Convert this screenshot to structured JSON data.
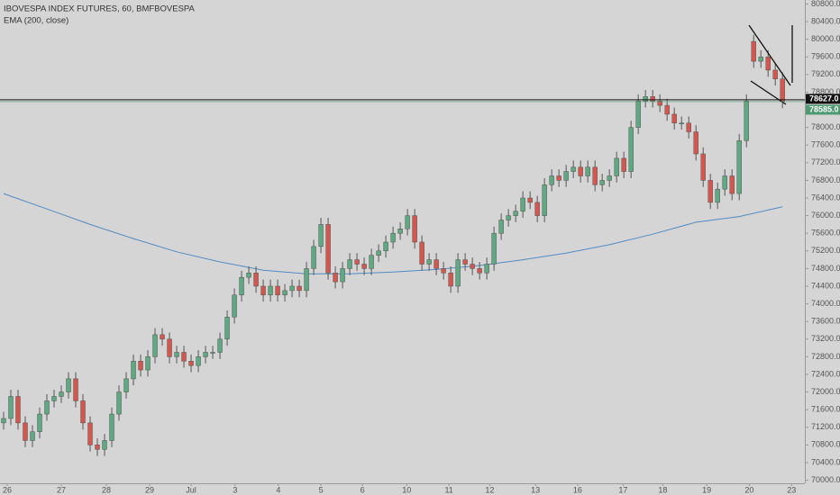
{
  "chart_data": {
    "type": "candlestick",
    "title": "IBOVESPA INDEX FUTURES, 60, BMFBOVESPA",
    "colors": {
      "up": "#5fa882",
      "down": "#d2574e"
    },
    "open": [
      71300,
      71400,
      71900,
      71300,
      70900,
      71100,
      71500,
      71800,
      71900,
      72000,
      72300,
      71800,
      71300,
      70800,
      70700,
      70900,
      71500,
      72000,
      72300,
      72700,
      72500,
      72800,
      73300,
      73200,
      72800,
      72900,
      72700,
      72600,
      72800,
      72900,
      72900,
      73200,
      73700,
      74200,
      74600,
      74700,
      74400,
      74200,
      74400,
      74200,
      74300,
      74400,
      74300,
      74800,
      75300,
      75800,
      74700,
      74500,
      74800,
      75000,
      74900,
      74800,
      75100,
      75200,
      75400,
      75600,
      75700,
      76000,
      75400,
      74900,
      75000,
      74800,
      74700,
      74400,
      75000,
      74900,
      74800,
      74700,
      74900,
      75600,
      75900,
      76000,
      76100,
      76400,
      76300,
      76000,
      76700,
      76900,
      76800,
      77000,
      77100,
      76900,
      77100,
      76700,
      76800,
      76900,
      77300,
      77000,
      78000,
      78600,
      78700,
      78600,
      78500,
      78300,
      78100,
      78100,
      77900,
      77400,
      76800,
      76300,
      76600,
      76900,
      76500,
      77700,
      79950,
      79500,
      79600,
      79300,
      79100
    ],
    "high": [
      71550,
      72050,
      72050,
      71450,
      71250,
      71650,
      71950,
      72050,
      72150,
      72450,
      72450,
      71950,
      71450,
      70950,
      71050,
      71650,
      72150,
      72450,
      72850,
      72850,
      72950,
      73450,
      73450,
      73350,
      73050,
      73050,
      72850,
      72950,
      73050,
      73050,
      73350,
      73850,
      74350,
      74750,
      74850,
      74850,
      74550,
      74550,
      74550,
      74450,
      74550,
      74550,
      74950,
      75450,
      75950,
      75950,
      74850,
      74950,
      75150,
      75150,
      75050,
      75250,
      75350,
      75550,
      75750,
      75850,
      76150,
      76150,
      75550,
      75150,
      75150,
      74950,
      74850,
      75150,
      75150,
      75050,
      74950,
      75050,
      75750,
      76050,
      76150,
      76250,
      76550,
      76550,
      76450,
      76850,
      77050,
      77050,
      77150,
      77250,
      77250,
      77250,
      77250,
      76950,
      77050,
      77450,
      77450,
      78150,
      78750,
      78850,
      78850,
      78750,
      78650,
      78450,
      78250,
      78250,
      78050,
      77550,
      76950,
      76750,
      77050,
      77050,
      77850,
      78750,
      80100,
      79750,
      79750,
      79450,
      79250
    ],
    "low": [
      71150,
      71250,
      71150,
      70750,
      70750,
      70950,
      71350,
      71650,
      71750,
      71850,
      71650,
      71150,
      70650,
      70550,
      70550,
      70750,
      71350,
      71850,
      72150,
      72350,
      72350,
      72650,
      73050,
      72650,
      72650,
      72550,
      72450,
      72450,
      72650,
      72750,
      72750,
      73050,
      73550,
      74050,
      74450,
      74250,
      74050,
      74050,
      74050,
      74050,
      74150,
      74150,
      74150,
      74650,
      75150,
      74550,
      74350,
      74350,
      74650,
      74750,
      74650,
      74650,
      74950,
      75050,
      75250,
      75450,
      75550,
      75250,
      74750,
      74750,
      74650,
      74550,
      74250,
      74250,
      74750,
      74650,
      74550,
      74550,
      74750,
      75450,
      75750,
      75850,
      75950,
      76150,
      75850,
      75850,
      76550,
      76650,
      76650,
      76850,
      76750,
      76750,
      76550,
      76550,
      76650,
      76750,
      76850,
      76850,
      77850,
      78450,
      78450,
      78350,
      78150,
      77950,
      77950,
      77750,
      77250,
      76650,
      76150,
      76150,
      76450,
      76350,
      76350,
      77550,
      79350,
      79350,
      79150,
      78950,
      78435
    ],
    "close": [
      71400,
      71900,
      71300,
      70900,
      71100,
      71500,
      71800,
      71900,
      72000,
      72300,
      71800,
      71300,
      70800,
      70700,
      70900,
      71500,
      72000,
      72300,
      72700,
      72500,
      72800,
      73300,
      73200,
      72800,
      72900,
      72700,
      72600,
      72800,
      72900,
      72900,
      73200,
      73700,
      74200,
      74600,
      74700,
      74400,
      74200,
      74400,
      74200,
      74300,
      74400,
      74300,
      74800,
      75300,
      75800,
      74700,
      74500,
      74800,
      75000,
      74900,
      74800,
      75100,
      75200,
      75400,
      75600,
      75700,
      76000,
      75400,
      74900,
      75000,
      74800,
      74700,
      74400,
      75000,
      74900,
      74800,
      74700,
      74900,
      75600,
      75900,
      76000,
      76100,
      76400,
      76300,
      76000,
      76700,
      76900,
      76800,
      77000,
      77100,
      76900,
      77100,
      76700,
      76800,
      76900,
      77300,
      77000,
      78000,
      78600,
      78700,
      78600,
      78500,
      78300,
      78100,
      78100,
      77900,
      77400,
      76800,
      76300,
      76600,
      76900,
      76500,
      77700,
      78600,
      79500,
      79600,
      79300,
      79100,
      78585
    ],
    "ema": {
      "name": "EMA (200, close)",
      "color": "#4f8cc4",
      "x": [
        0,
        6,
        12,
        18,
        24,
        30,
        36,
        42,
        48,
        54,
        60,
        66,
        72,
        78,
        84,
        90,
        96,
        102,
        108
      ],
      "values": [
        76500,
        76150,
        75800,
        75480,
        75180,
        74950,
        74760,
        74680,
        74680,
        74720,
        74780,
        74870,
        75000,
        75150,
        75340,
        75580,
        75850,
        75980,
        76200
      ]
    },
    "price_lines": [
      {
        "value": 78627,
        "label": "78627.0",
        "color": "#111111"
      },
      {
        "value": 78585,
        "label": "78585.0",
        "color": "#4f9a72"
      }
    ],
    "xlim": [
      -0.5,
      111.1
    ],
    "xticks": [
      {
        "value": 0.5,
        "label": "26"
      },
      {
        "value": 8,
        "label": "27"
      },
      {
        "value": 14.25,
        "label": "28"
      },
      {
        "value": 20.25,
        "label": "29"
      },
      {
        "value": 26,
        "label": "Jul"
      },
      {
        "value": 32.1,
        "label": "3"
      },
      {
        "value": 38.1,
        "label": "4"
      },
      {
        "value": 44,
        "label": "5"
      },
      {
        "value": 49.75,
        "label": "6"
      },
      {
        "value": 55.9,
        "label": "10"
      },
      {
        "value": 61.75,
        "label": "11"
      },
      {
        "value": 67.4,
        "label": "12"
      },
      {
        "value": 73.75,
        "label": "13"
      },
      {
        "value": 79.6,
        "label": "16"
      },
      {
        "value": 85.9,
        "label": "17"
      },
      {
        "value": 91.4,
        "label": "18"
      },
      {
        "value": 97.5,
        "label": "19"
      },
      {
        "value": 103.4,
        "label": "20"
      },
      {
        "value": 109.25,
        "label": "23"
      }
    ],
    "ylim": [
      69930,
      80890
    ],
    "yticks": [
      {
        "value": 70000,
        "label": "70000.0"
      },
      {
        "value": 70400,
        "label": "70400.0"
      },
      {
        "value": 70800,
        "label": "70800.0"
      },
      {
        "value": 71200,
        "label": "71200.0"
      },
      {
        "value": 71600,
        "label": "71600.0"
      },
      {
        "value": 72000,
        "label": "72000.0"
      },
      {
        "value": 72400,
        "label": "72400.0"
      },
      {
        "value": 72800,
        "label": "72800.0"
      },
      {
        "value": 73200,
        "label": "73200.0"
      },
      {
        "value": 73600,
        "label": "73600.0"
      },
      {
        "value": 74000,
        "label": "74000.0"
      },
      {
        "value": 74400,
        "label": "74400.0"
      },
      {
        "value": 74800,
        "label": "74800.0"
      },
      {
        "value": 75200,
        "label": "75200.0"
      },
      {
        "value": 75600,
        "label": "75600.0"
      },
      {
        "value": 76000,
        "label": "76000.0"
      },
      {
        "value": 76400,
        "label": "76400.0"
      },
      {
        "value": 76800,
        "label": "76800.0"
      },
      {
        "value": 77200,
        "label": "77200.0"
      },
      {
        "value": 77600,
        "label": "77600.0"
      },
      {
        "value": 78000,
        "label": "78000.0"
      },
      {
        "value": 78400,
        "label": "78400.0"
      },
      {
        "value": 78800,
        "label": "78800.0"
      },
      {
        "value": 79200,
        "label": "79200.0"
      },
      {
        "value": 79600,
        "label": "79600.0"
      },
      {
        "value": 80000,
        "label": "80000.0"
      },
      {
        "value": 80400,
        "label": "80400.0"
      },
      {
        "value": 80800,
        "label": "80800.0"
      }
    ]
  }
}
